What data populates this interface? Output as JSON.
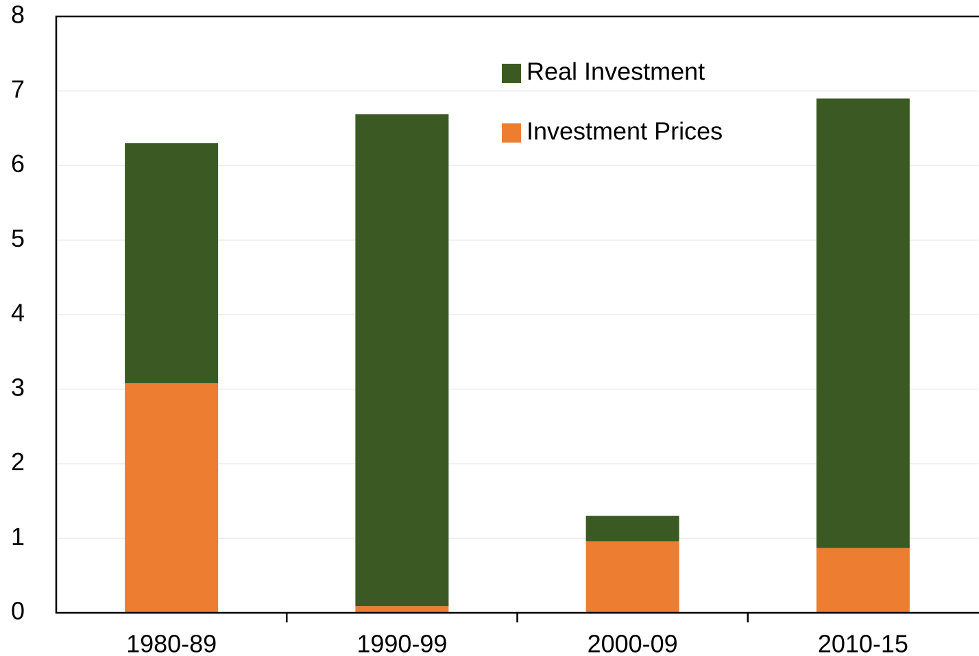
{
  "chart_data": {
    "type": "stacked_bar",
    "categories": [
      "1980-89",
      "1990-99",
      "2000-09",
      "2010-15"
    ],
    "series": [
      {
        "name": "Investment Prices",
        "color": "#ed7d31",
        "values": [
          3.08,
          0.09,
          0.96,
          0.87
        ]
      },
      {
        "name": "Real Investment",
        "color": "#3b5a23",
        "values": [
          3.22,
          6.6,
          0.34,
          6.03
        ]
      }
    ],
    "ylim": [
      0,
      8
    ],
    "yticks": [
      0,
      1,
      2,
      3,
      4,
      5,
      6,
      7,
      8
    ],
    "grid": true
  }
}
